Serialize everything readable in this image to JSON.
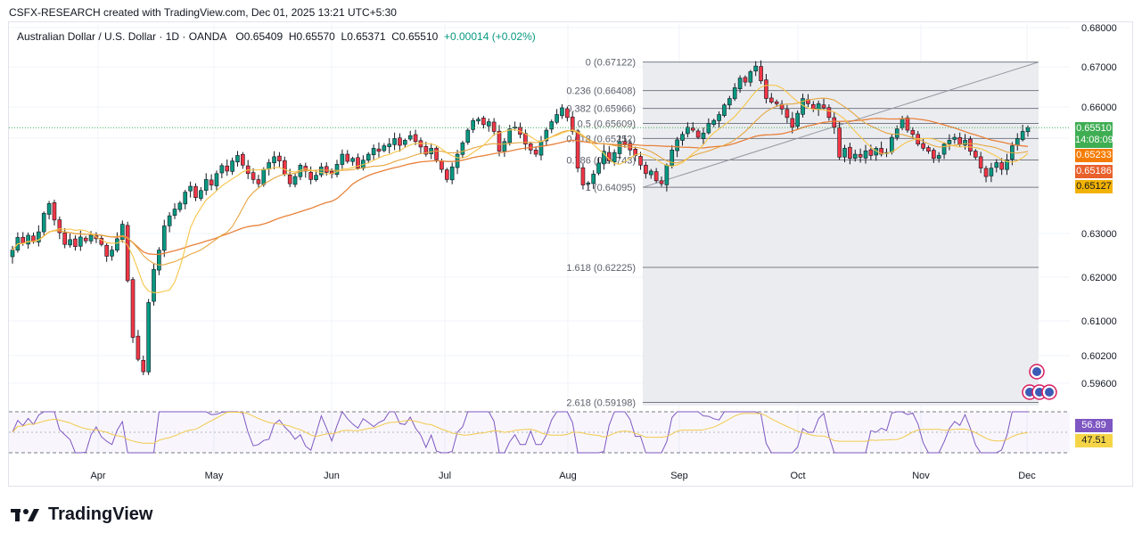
{
  "header": {
    "text": "CSFX-RESEARCH created with TradingView.com, Dec 01, 2025 13:21 UTC+5:30"
  },
  "legend": {
    "symbol": "Australian Dollar / U.S. Dollar · 1D · OANDA",
    "open": "O0.65409",
    "high": "H0.65570",
    "low": "L0.65371",
    "close": "C0.65510",
    "change": "+0.00014 (+0.02%)"
  },
  "price_axis": {
    "labels": [
      "0.68000",
      "0.67000",
      "0.66000",
      "0.63000",
      "0.62000",
      "0.61000",
      "0.60200",
      "0.59600"
    ]
  },
  "time_axis": {
    "labels": [
      "Apr",
      "May",
      "Jun",
      "Jul",
      "Aug",
      "Sep",
      "Oct",
      "Nov",
      "Dec"
    ]
  },
  "fib": {
    "levels": [
      {
        "label": "0 (0.67122)",
        "price": 0.67122
      },
      {
        "label": "0.236 (0.66408)",
        "price": 0.66408
      },
      {
        "label": "0.382 (0.65966)",
        "price": 0.65966
      },
      {
        "label": "0.5 (0.65609)",
        "price": 0.65609
      },
      {
        "label": "0.618 (0.65252)",
        "price": 0.65252
      },
      {
        "label": "0.786 (0.64743)",
        "price": 0.64743
      },
      {
        "label": "1 (0.64095)",
        "price": 0.64095
      },
      {
        "label": "1.618 (0.62225)",
        "price": 0.62225
      },
      {
        "label": "2.618 (0.59198)",
        "price": 0.59198
      }
    ]
  },
  "tags": {
    "price": "0.65510",
    "countdown": "14:08:09",
    "ma1": "0.65233",
    "ma2": "0.65186",
    "ma3": "0.65127",
    "rsi": "56.89",
    "rsi_ma": "47.51"
  },
  "colors": {
    "up": "#089981",
    "down": "#f23645",
    "ma_fast": "#f7c548",
    "ma_slow": "#e8813a",
    "ma_mid": "#e6a640",
    "rsi": "#7e57c2",
    "price_tag": "#3fae53",
    "tag_orange": "#f57c00",
    "tag_red": "#e8602c",
    "tag_yellow": "#f2b203",
    "rsi_tag": "#7e57c2"
  },
  "logo": {
    "text": "TradingView"
  },
  "chart_data": {
    "type": "candlestick",
    "title": "Australian Dollar / U.S. Dollar · 1D · OANDA",
    "ylim": [
      0.5904,
      0.6836
    ],
    "x_labels": [
      "Apr",
      "May",
      "Jun",
      "Jul",
      "Aug",
      "Sep",
      "Oct",
      "Nov",
      "Dec"
    ],
    "closes": [
      0.6262,
      0.6291,
      0.6278,
      0.6296,
      0.6281,
      0.6304,
      0.6348,
      0.6371,
      0.6332,
      0.6302,
      0.6275,
      0.6286,
      0.627,
      0.6292,
      0.6283,
      0.6296,
      0.6288,
      0.6275,
      0.6248,
      0.6262,
      0.6288,
      0.6322,
      0.6192,
      0.6062,
      0.6012,
      0.5985,
      0.6142,
      0.6218,
      0.6262,
      0.6318,
      0.6342,
      0.6358,
      0.6372,
      0.6398,
      0.6412,
      0.6385,
      0.6402,
      0.6428,
      0.6415,
      0.6442,
      0.6461,
      0.6448,
      0.6472,
      0.6485,
      0.6462,
      0.6442,
      0.6428,
      0.6418,
      0.6452,
      0.6468,
      0.6482,
      0.6472,
      0.6441,
      0.6418,
      0.6435,
      0.6462,
      0.6448,
      0.6428,
      0.6438,
      0.6458,
      0.6445,
      0.6441,
      0.6464,
      0.6488,
      0.6471,
      0.6478,
      0.6455,
      0.6474,
      0.6488,
      0.6502,
      0.6495,
      0.6508,
      0.6512,
      0.6525,
      0.6509,
      0.6521,
      0.6532,
      0.6518,
      0.6505,
      0.6488,
      0.6502,
      0.6475,
      0.6452,
      0.6428,
      0.6458,
      0.6488,
      0.6515,
      0.6545,
      0.6568,
      0.6571,
      0.6558,
      0.6565,
      0.6542,
      0.6495,
      0.6518,
      0.6548,
      0.6552,
      0.6535,
      0.6512,
      0.6498,
      0.6488,
      0.6518,
      0.6545,
      0.6565,
      0.6582,
      0.6598,
      0.6575,
      0.6542,
      0.6455,
      0.6415,
      0.642,
      0.6441,
      0.6467,
      0.6495,
      0.6472,
      0.6492,
      0.6518,
      0.6512,
      0.6498,
      0.6485,
      0.6462,
      0.6442,
      0.6448,
      0.6425,
      0.6418,
      0.6462,
      0.6498,
      0.6522,
      0.6535,
      0.6552,
      0.6545,
      0.6528,
      0.6538,
      0.6561,
      0.6568,
      0.6582,
      0.6605,
      0.6621,
      0.6648,
      0.6672,
      0.6662,
      0.6688,
      0.6702,
      0.6665,
      0.6621,
      0.6612,
      0.6608,
      0.6595,
      0.6575,
      0.6552,
      0.6585,
      0.6621,
      0.6608,
      0.6595,
      0.6608,
      0.6598,
      0.6575,
      0.6552,
      0.6481,
      0.6502,
      0.6478,
      0.6488,
      0.6481,
      0.6496,
      0.6485,
      0.6502,
      0.6488,
      0.6492,
      0.6528,
      0.6548,
      0.6572,
      0.6545,
      0.6535,
      0.6512,
      0.6502,
      0.6495,
      0.6478,
      0.6485,
      0.6512,
      0.6521,
      0.6528,
      0.6512,
      0.6521,
      0.6495,
      0.6481,
      0.6455,
      0.6435,
      0.6455,
      0.6468,
      0.6452,
      0.6474,
      0.6508,
      0.6525,
      0.6542,
      0.6551
    ]
  }
}
